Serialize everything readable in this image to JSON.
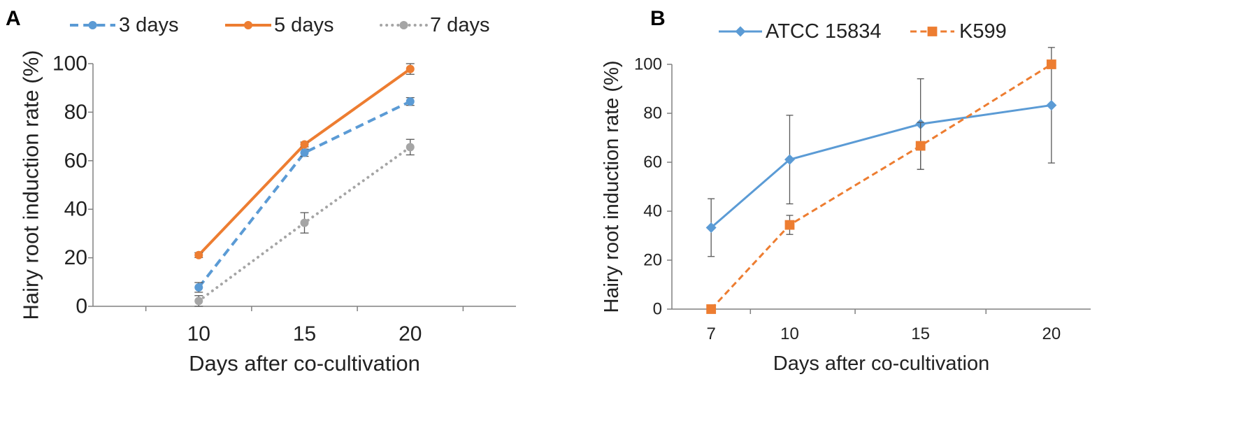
{
  "figure_name": "hairy-root-induction-figure",
  "colors": {
    "blue": "#5b9bd5",
    "orange": "#ed7d31",
    "gray": "#a5a5a5",
    "axis": "#808080",
    "errorbar": "#595959"
  },
  "chart_data": [
    {
      "panel": "A",
      "type": "line",
      "title": "",
      "xlabel": "Days after co-cultivation",
      "ylabel": "Hairy root induction rate (%)",
      "categories": [
        "10",
        "15",
        "20"
      ],
      "x": [
        10,
        15,
        20
      ],
      "ylim": [
        0,
        100
      ],
      "yticks": [
        0,
        20,
        40,
        60,
        80,
        100
      ],
      "grid": false,
      "legend_position": "top",
      "series": [
        {
          "name": "3 days",
          "values": [
            7.8,
            63.3,
            84.4
          ],
          "errors": [
            2,
            1.5,
            1.6
          ],
          "color": "#5b9bd5",
          "dash": "dashed",
          "marker": "circle"
        },
        {
          "name": "5 days",
          "values": [
            21.1,
            66.7,
            97.8
          ],
          "errors": [
            1,
            1,
            2.2
          ],
          "color": "#ed7d31",
          "dash": "solid",
          "marker": "circle"
        },
        {
          "name": "7 days",
          "values": [
            2.2,
            34.4,
            65.6
          ],
          "errors": [
            2.2,
            4.2,
            3.2
          ],
          "color": "#a5a5a5",
          "dash": "dotted",
          "marker": "circle"
        }
      ]
    },
    {
      "panel": "B",
      "type": "line",
      "title": "",
      "xlabel": "Days after co-cultivation",
      "ylabel": "Hairy root induction rate (%)",
      "categories": [
        "7",
        "10",
        "15",
        "20"
      ],
      "x": [
        7,
        10,
        15,
        20
      ],
      "ylim": [
        0,
        100
      ],
      "yticks": [
        0,
        20,
        40,
        60,
        80,
        100
      ],
      "grid": false,
      "legend_position": "top",
      "series": [
        {
          "name": "ATCC 15834",
          "values": [
            33.3,
            61.1,
            75.6,
            83.3
          ],
          "errors": [
            11.8,
            18.1,
            18.5,
            23.6
          ],
          "color": "#5b9bd5",
          "dash": "solid",
          "marker": "diamond"
        },
        {
          "name": "K599",
          "values": [
            0,
            34.4,
            66.7,
            100
          ],
          "errors": [
            0,
            3.9,
            9.6,
            0
          ],
          "color": "#ed7d31",
          "dash": "dashed",
          "marker": "square"
        }
      ]
    }
  ]
}
